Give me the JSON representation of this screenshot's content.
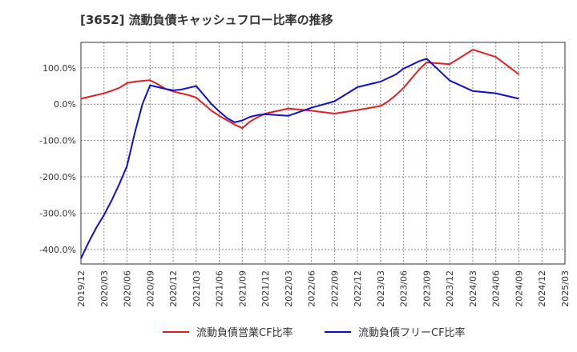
{
  "chart_data": {
    "type": "line",
    "title": "[3652]  流動負債キャッシュフロー比率の推移",
    "y_unit": "%",
    "ylim": [
      -440,
      170
    ],
    "y_ticks": [
      100,
      0,
      -100,
      -200,
      -300,
      -400
    ],
    "y_tick_labels": [
      "100.0%",
      "0.0%",
      "-100.0%",
      "-200.0%",
      "-300.0%",
      "-400.0%"
    ],
    "x_ticks": [
      "2019/12",
      "2020/03",
      "2020/06",
      "2020/09",
      "2020/12",
      "2021/03",
      "2021/06",
      "2021/09",
      "2021/12",
      "2022/03",
      "2022/06",
      "2022/09",
      "2022/12",
      "2023/03",
      "2023/06",
      "2023/09",
      "2023/12",
      "2024/03",
      "2024/06",
      "2024/09",
      "2024/12",
      "2025/03"
    ],
    "grid": true,
    "legend_position": "bottom",
    "series": [
      {
        "name": "流動負債営業CF比率",
        "color": "#e02020",
        "x": [
          "2019/12",
          "2020/01",
          "2020/02",
          "2020/03",
          "2020/04",
          "2020/05",
          "2020/06",
          "2020/07",
          "2020/08",
          "2020/09",
          "2020/10",
          "2020/11",
          "2020/12",
          "2021/01",
          "2021/02",
          "2021/03",
          "2021/04",
          "2021/05",
          "2021/06",
          "2021/07",
          "2021/08",
          "2021/09",
          "2021/10",
          "2021/11",
          "2021/12",
          "2022/03",
          "2022/06",
          "2022/09",
          "2022/12",
          "2023/03",
          "2023/04",
          "2023/05",
          "2023/06",
          "2023/07",
          "2023/08",
          "2023/09",
          "2023/12",
          "2024/03",
          "2024/06",
          "2024/09"
        ],
        "values": [
          15,
          20,
          25,
          30,
          37,
          45,
          58,
          62,
          64,
          66,
          55,
          42,
          35,
          30,
          25,
          18,
          0,
          -18,
          -32,
          -44,
          -56,
          -66,
          -48,
          -36,
          -26,
          -12,
          -18,
          -26,
          -16,
          -5,
          8,
          25,
          45,
          70,
          95,
          115,
          110,
          150,
          130,
          82
        ]
      },
      {
        "name": "流動負債フリーCF比率",
        "color": "#1010cc",
        "x": [
          "2019/12",
          "2020/01",
          "2020/02",
          "2020/03",
          "2020/04",
          "2020/05",
          "2020/06",
          "2020/07",
          "2020/08",
          "2020/09",
          "2020/10",
          "2020/11",
          "2020/12",
          "2021/01",
          "2021/02",
          "2021/03",
          "2021/04",
          "2021/05",
          "2021/06",
          "2021/07",
          "2021/08",
          "2021/09",
          "2021/10",
          "2021/11",
          "2021/12",
          "2022/03",
          "2022/06",
          "2022/09",
          "2022/12",
          "2023/03",
          "2023/04",
          "2023/05",
          "2023/06",
          "2023/07",
          "2023/08",
          "2023/09",
          "2023/12",
          "2024/03",
          "2024/06",
          "2024/09"
        ],
        "values": [
          -425,
          -380,
          -340,
          -305,
          -265,
          -220,
          -170,
          -80,
          0,
          52,
          47,
          42,
          38,
          40,
          45,
          50,
          25,
          0,
          -20,
          -38,
          -50,
          -45,
          -35,
          -30,
          -28,
          -32,
          -10,
          8,
          47,
          62,
          72,
          82,
          98,
          108,
          118,
          125,
          65,
          36,
          30,
          15
        ]
      }
    ]
  }
}
